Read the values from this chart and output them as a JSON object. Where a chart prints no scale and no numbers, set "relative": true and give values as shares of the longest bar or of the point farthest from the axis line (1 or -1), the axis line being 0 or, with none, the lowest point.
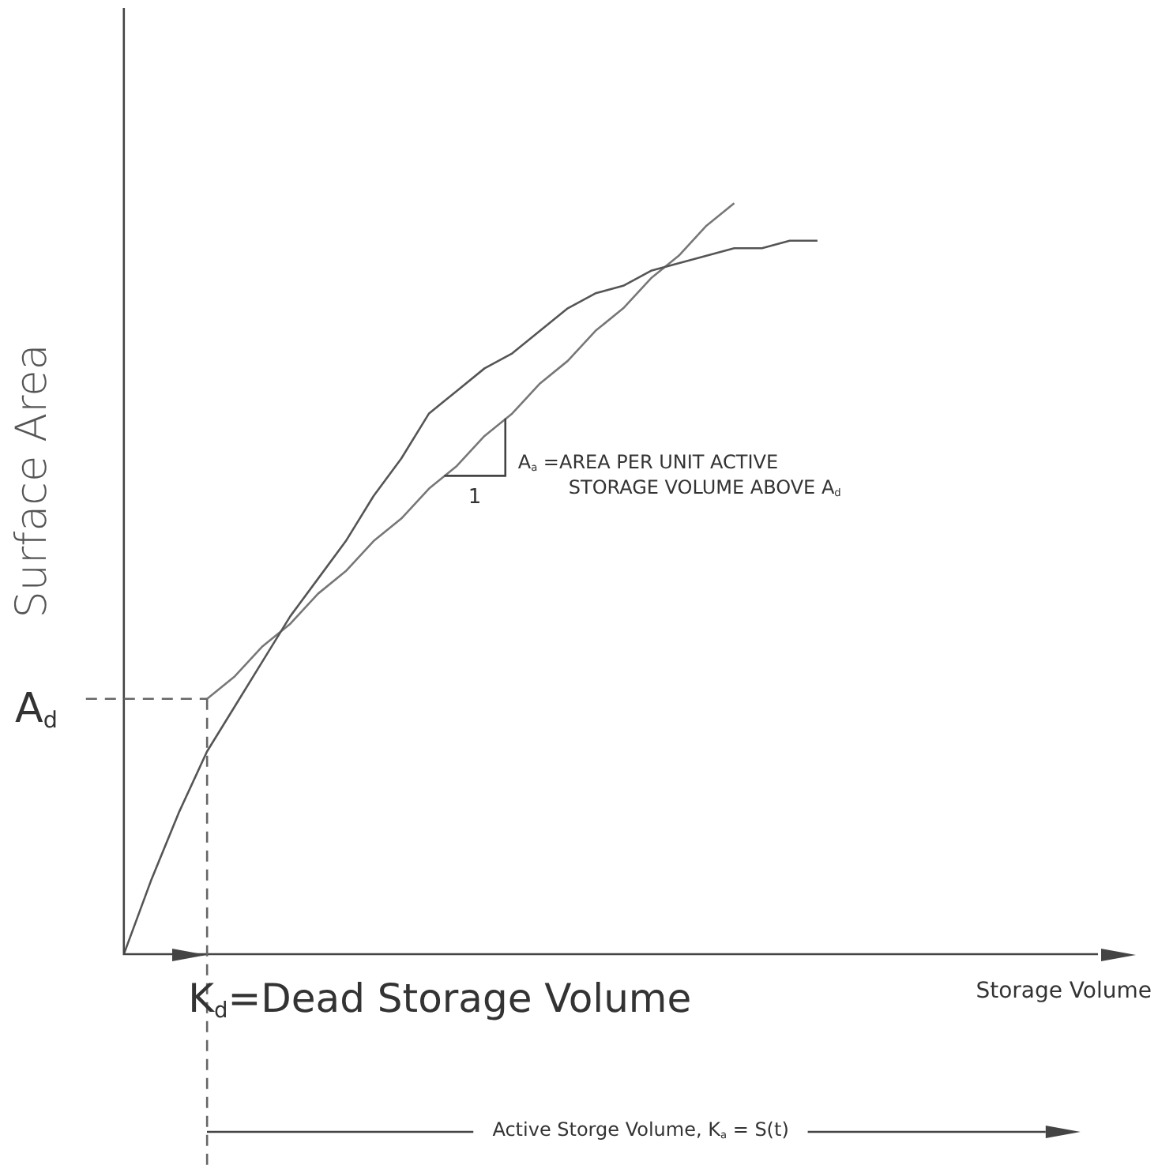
{
  "chart_data": {
    "type": "line",
    "relative": true,
    "ylabel": "Surface Area",
    "legend": false,
    "grid": false,
    "marker": "none",
    "line_style": "solid",
    "categories": [
      null,
      null,
      null,
      null,
      null,
      null,
      null,
      null,
      null,
      null,
      null,
      null,
      null,
      null,
      null,
      null,
      null,
      null,
      null,
      null,
      null,
      null,
      null,
      null,
      null,
      null
    ],
    "series": [
      {
        "color": "#555555",
        "values": [
          0,
          0.1,
          0.19,
          0.27,
          0.33,
          0.39,
          0.45,
          0.5,
          0.55,
          0.61,
          0.66,
          0.72,
          0.75,
          0.78,
          0.8,
          0.83,
          0.86,
          0.88,
          0.89,
          0.91,
          0.92,
          0.93,
          0.94,
          0.94,
          0.95,
          0.95
        ]
      },
      {
        "color": "#777777",
        "values": [
          null,
          null,
          null,
          0.34,
          0.37,
          0.41,
          0.44,
          0.48,
          0.51,
          0.55,
          0.58,
          0.62,
          0.65,
          0.69,
          0.72,
          0.76,
          0.79,
          0.83,
          0.86,
          0.9,
          0.93,
          0.97,
          1.0,
          null,
          null,
          null
        ]
      }
    ],
    "ref_lines": [
      {
        "axis": "y",
        "value": 0.34,
        "label": "A$_{d}$",
        "line_style": "dashed"
      }
    ],
    "annotations": [
      "A$_{a}$ =AREA PER UNIT ACTIVE STORAGE VOLUME ABOVE A$_{d}$",
      "1",
      "K$_{d}$=Dead Storage Volume",
      "Active Storge Volume, K$_{a}$ = S(t)",
      "Storage Volume"
    ]
  }
}
